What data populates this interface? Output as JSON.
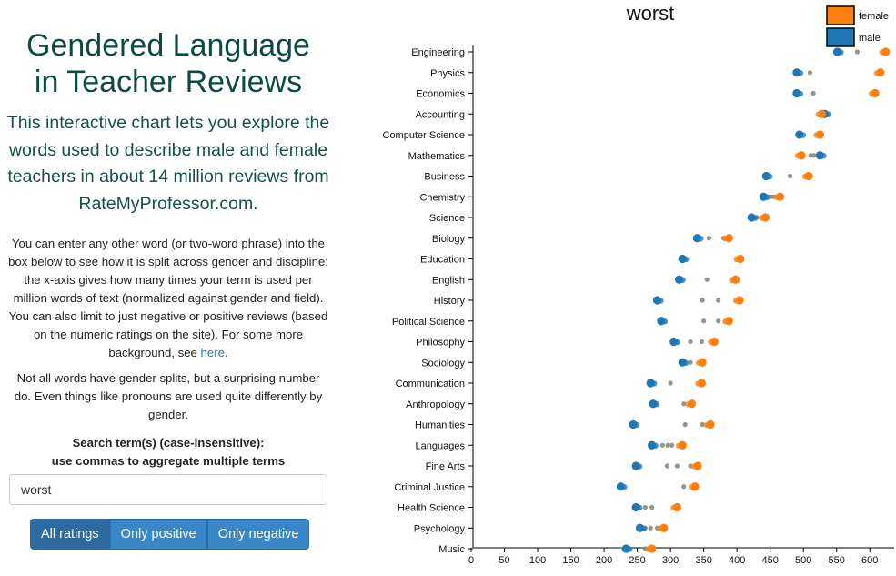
{
  "left": {
    "title_line1": "Gendered Language",
    "title_line2": "in Teacher Reviews",
    "intro": "This interactive chart lets you explore the words used to describe male and female teachers in about 14 million reviews from RateMyProfessor.com.",
    "desc_text": "You can enter any other word (or two-word phrase) into the box below to see how it is split across gender and discipline: the x-axis gives how many times your term is used per million words of text (normalized against gender and field). You can also limit to just negative or positive reviews (based on the numeric ratings on the site). For some more background, see ",
    "desc_link": "here",
    "desc_end": ".",
    "note": "Not all words have gender splits, but a surprising number do. Even things like pronouns are used quite differently by gender.",
    "search_label_line1": "Search term(s) (case-insensitive):",
    "search_label_line2": "use commas to aggregate multiple terms",
    "search_value": "worst",
    "buttons": [
      "All ratings",
      "Only positive",
      "Only negative"
    ],
    "active_button": "All ratings"
  },
  "chart_data": {
    "type": "scatter",
    "title": "worst",
    "xlabel": "",
    "ylabel": "",
    "xlim": [
      0,
      625
    ],
    "xticks": [
      "0",
      "50",
      "100",
      "150",
      "200",
      "250",
      "300",
      "350",
      "400",
      "450",
      "500",
      "550",
      "600"
    ],
    "legend_placement": "top-right",
    "series": [
      {
        "name": "female",
        "color": "#ff7f0e"
      },
      {
        "name": "male",
        "color": "#1f77b4"
      }
    ],
    "gray_color": "#8a8a7a",
    "categories": [
      "Engineering",
      "Physics",
      "Economics",
      "Accounting",
      "Computer Science",
      "Mathematics",
      "Business",
      "Chemistry",
      "Science",
      "Biology",
      "Education",
      "English",
      "History",
      "Political Science",
      "Philosophy",
      "Sociology",
      "Communication",
      "Anthropology",
      "Humanities",
      "Languages",
      "Fine Arts",
      "Criminal Justice",
      "Health Science",
      "Psychology",
      "Music"
    ],
    "female": [
      624,
      616,
      608,
      528,
      525,
      497,
      508,
      465,
      443,
      388,
      405,
      398,
      404,
      388,
      366,
      348,
      347,
      332,
      360,
      318,
      341,
      337,
      310,
      290,
      272
    ],
    "male": [
      551,
      490,
      490,
      532,
      494,
      525,
      444,
      440,
      422,
      340,
      318,
      313,
      280,
      286,
      305,
      318,
      270,
      274,
      244,
      272,
      248,
      225,
      248,
      254,
      233
    ],
    "gray": [
      [
        581
      ],
      [
        510
      ],
      [
        515
      ],
      [],
      [],
      [
        511,
        516
      ],
      [
        480
      ],
      [
        450,
        455
      ],
      [
        430
      ],
      [
        358,
        380
      ],
      [
        320
      ],
      [
        355
      ],
      [
        348,
        372
      ],
      [
        350,
        372
      ],
      [
        330,
        347
      ],
      [
        330
      ],
      [
        300
      ],
      [
        320
      ],
      [
        322,
        348
      ],
      [
        288,
        296,
        302
      ],
      [
        295,
        310,
        330
      ],
      [
        320
      ],
      [
        262,
        272
      ],
      [
        262,
        270,
        280
      ],
      [
        262
      ]
    ]
  }
}
